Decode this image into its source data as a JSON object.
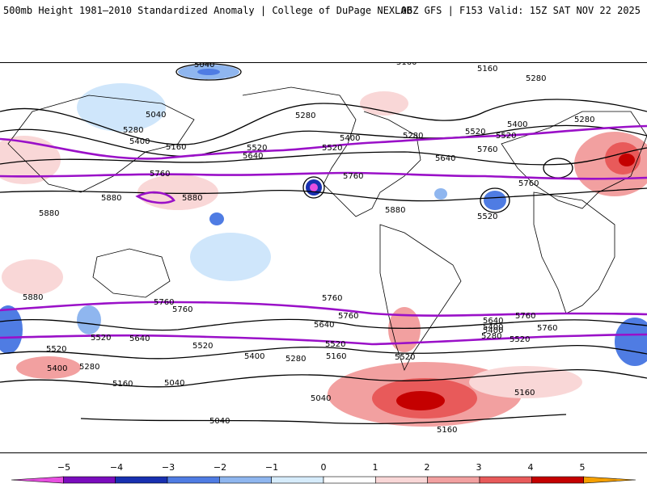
{
  "header": {
    "left_title": "500mb Height 1981–2010 Standardized Anomaly | College of DuPage NEXLAB",
    "right_title": "06Z GFS | F153 Valid: 15Z SAT NOV 22 2025"
  },
  "map": {
    "contour_labels": [
      "5040",
      "5160",
      "5160",
      "5280",
      "5040",
      "5280",
      "5400",
      "5160",
      "5520",
      "5640",
      "5520",
      "5760",
      "5880",
      "5760",
      "5880",
      "5280",
      "5400",
      "5520",
      "5520",
      "5640",
      "5280",
      "5400",
      "5280",
      "5760",
      "5760",
      "5520",
      "5880",
      "5880",
      "5880",
      "5760",
      "5760",
      "5760",
      "5760",
      "5760",
      "5760",
      "5640",
      "5640",
      "5400",
      "5520",
      "5520",
      "5520",
      "5520",
      "5640",
      "5520",
      "5400",
      "5280",
      "5160",
      "5280",
      "5400",
      "5040",
      "5160",
      "5160",
      "5040",
      "5040",
      "5280",
      "5400",
      "5520",
      "5160"
    ],
    "colors": {
      "land_line": "#000000",
      "height_contour": "#000000",
      "highlight_contour": "#9a10c8",
      "neg_1": "#cfe6fb",
      "neg_2": "#8fb6ef",
      "neg_3": "#4f7ce3",
      "neg_4": "#1830b0",
      "neg_5": "#7a0cbd",
      "pos_1": "#f9d7d7",
      "pos_2": "#f2a0a0",
      "pos_3": "#e85a5a",
      "pos_4": "#c40000",
      "pos_5": "#f5a000"
    }
  },
  "colorbar": {
    "ticks": [
      "−5",
      "−4",
      "−3",
      "−2",
      "−1",
      "0",
      "1",
      "2",
      "3",
      "4",
      "5"
    ],
    "segments": [
      "#e74fe0",
      "#7a0cbd",
      "#1830b0",
      "#4f7ce3",
      "#8fb6ef",
      "#d6ecfb",
      "#ffffff",
      "#f9d7d7",
      "#f2a0a0",
      "#e85a5a",
      "#c40000",
      "#f5a000"
    ]
  }
}
